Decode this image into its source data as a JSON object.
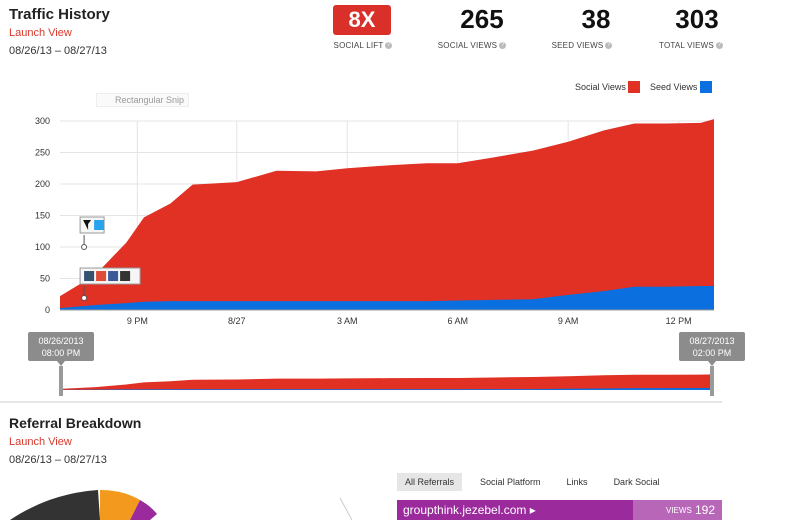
{
  "traffic": {
    "title": "Traffic History",
    "launch_link": "Launch View",
    "date_range": "08/26/13 – 08/27/13"
  },
  "stats": {
    "social_lift": {
      "value": "8X",
      "label": "SOCIAL LIFT"
    },
    "social_views": {
      "value": "265",
      "label": "SOCIAL VIEWS"
    },
    "seed_views": {
      "value": "38",
      "label": "SEED VIEWS"
    },
    "total_views": {
      "value": "303",
      "label": "TOTAL VIEWS"
    },
    "help_glyph": "?"
  },
  "legend": {
    "social": {
      "label": "Social Views",
      "color": "#e03124"
    },
    "seed": {
      "label": "Seed Views",
      "color": "#0b6fe0"
    }
  },
  "snip_text": "Rectangular Snip",
  "markers": {
    "twitter": {
      "x": 7,
      "y": 100,
      "icons": [
        "twitter-icon"
      ]
    },
    "multi": {
      "x": 7,
      "y": 19,
      "icons": [
        "tumblr-icon",
        "google-icon",
        "facebook-icon",
        "delicious-icon"
      ]
    }
  },
  "chart_data": {
    "type": "area",
    "title": "",
    "xlabel": "",
    "ylabel": "",
    "ylim": [
      0,
      300
    ],
    "xlim": [
      6.5,
      21.3
    ],
    "yticks": [
      "0",
      "50",
      "100",
      "150",
      "200",
      "250",
      "300"
    ],
    "xticks": [
      {
        "x": 8.25,
        "label": "9 PM"
      },
      {
        "x": 10.5,
        "label": "8/27"
      },
      {
        "x": 13.0,
        "label": "3 AM"
      },
      {
        "x": 15.5,
        "label": "6 AM"
      },
      {
        "x": 18.0,
        "label": "9 AM"
      },
      {
        "x": 20.5,
        "label": "12 PM"
      }
    ],
    "x": [
      6.5,
      7.3,
      8.0,
      8.4,
      9.0,
      9.5,
      10.5,
      11.4,
      12.3,
      13.0,
      14.0,
      14.8,
      15.5,
      16.3,
      17.2,
      18.0,
      18.8,
      19.5,
      20.2,
      21.0,
      21.3
    ],
    "series": [
      {
        "name": "Social Views",
        "color": "#e03124",
        "values": [
          19,
          48,
          96,
          134,
          155,
          185,
          189,
          207,
          206,
          211,
          216,
          219,
          218,
          226,
          236,
          243,
          255,
          259,
          259,
          259,
          265
        ]
      },
      {
        "name": "Seed Views",
        "color": "#0b6fe0",
        "values": [
          3,
          8,
          11,
          13,
          14,
          14,
          14,
          14,
          14,
          14,
          14,
          14,
          15,
          16,
          17,
          24,
          30,
          37,
          37,
          38,
          38
        ]
      }
    ]
  },
  "range_selector": {
    "start_date": "08/26/2013",
    "start_time": "08:00 PM",
    "end_date": "08/27/2013",
    "end_time": "02:00 PM"
  },
  "referral": {
    "title": "Referral Breakdown",
    "launch_link": "Launch View",
    "date_range": "08/26/13 – 08/27/13",
    "tabs": [
      "All Referrals",
      "Social Platform",
      "Links",
      "Dark Social"
    ],
    "active_tab": 0,
    "top": {
      "domain": "groupthink.jezebel.com ▸",
      "views_label": "VIEWS",
      "views": "192"
    }
  }
}
